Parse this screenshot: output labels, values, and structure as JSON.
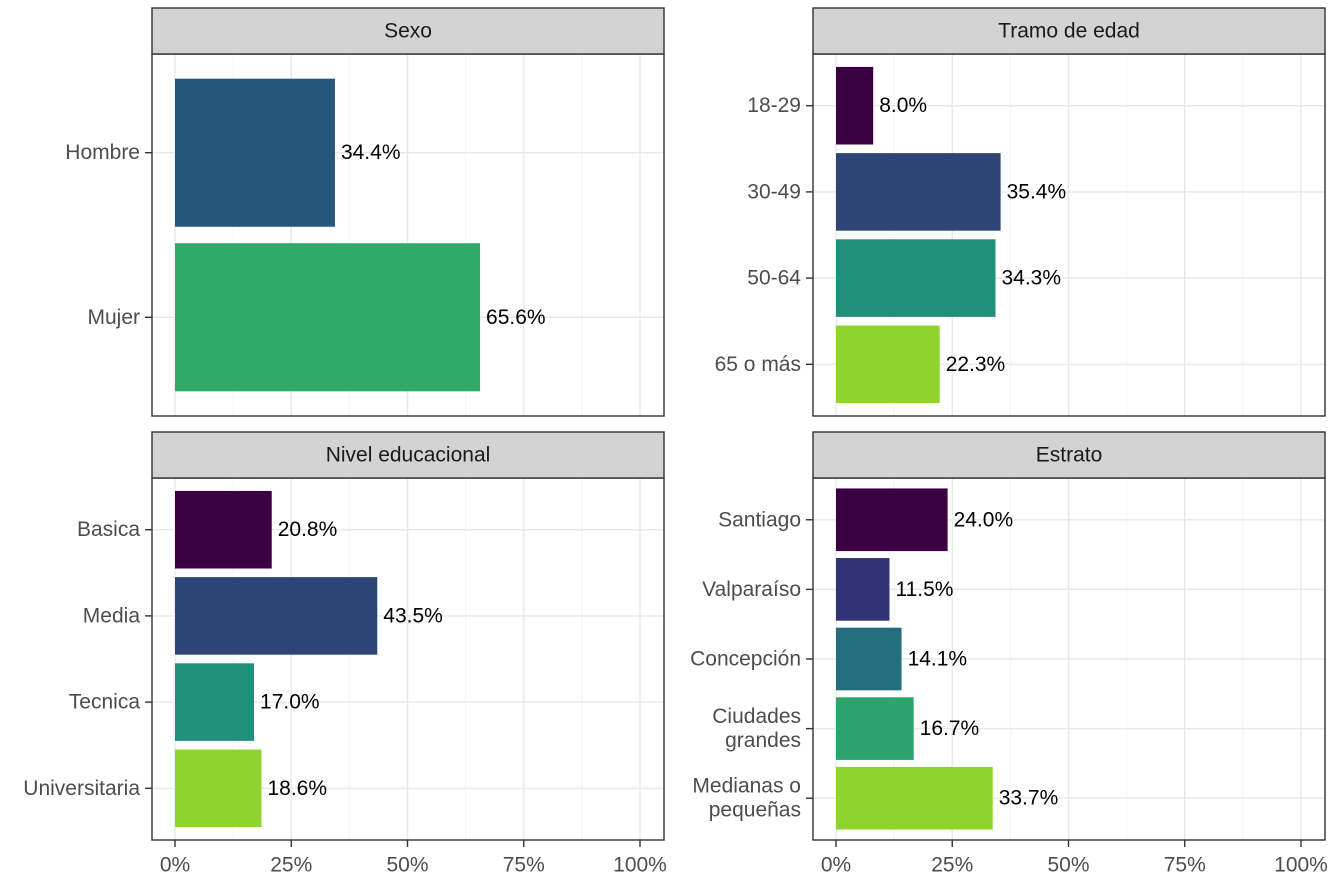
{
  "chart_data": [
    {
      "type": "bar",
      "orientation": "horizontal",
      "title": "Sexo",
      "categories": [
        "Hombre",
        "Mujer"
      ],
      "values": [
        34.4,
        65.6
      ],
      "labels": [
        "34.4%",
        "65.6%"
      ],
      "colors": [
        "#26567a",
        "#2eac67"
      ],
      "xlim": [
        0,
        100
      ],
      "x_ticks": [
        "0%",
        "25%",
        "50%",
        "75%",
        "100%"
      ],
      "grid": true
    },
    {
      "type": "bar",
      "orientation": "horizontal",
      "title": "Tramo de edad",
      "categories": [
        "18-29",
        "30-49",
        "50-64",
        "65 o más"
      ],
      "values": [
        8.0,
        35.4,
        34.3,
        22.3
      ],
      "labels": [
        "8.0%",
        "35.4%",
        "34.3%",
        "22.3%"
      ],
      "colors": [
        "#3b0041",
        "#2c4478",
        "#20907b",
        "#8ed42c"
      ],
      "xlim": [
        0,
        100
      ],
      "x_ticks": [
        "0%",
        "25%",
        "50%",
        "75%",
        "100%"
      ],
      "grid": true
    },
    {
      "type": "bar",
      "orientation": "horizontal",
      "title": "Nivel educacional",
      "categories": [
        "Basica",
        "Media",
        "Tecnica",
        "Universitaria"
      ],
      "values": [
        20.8,
        43.5,
        17.0,
        18.6
      ],
      "labels": [
        "20.8%",
        "43.5%",
        "17.0%",
        "18.6%"
      ],
      "colors": [
        "#3b0041",
        "#2c4478",
        "#20907b",
        "#8ed42c"
      ],
      "xlim": [
        0,
        100
      ],
      "x_ticks": [
        "0%",
        "25%",
        "50%",
        "75%",
        "100%"
      ],
      "grid": true
    },
    {
      "type": "bar",
      "orientation": "horizontal",
      "title": "Estrato",
      "categories": [
        "Santiago",
        "Valparaíso",
        "Concepción",
        "Ciudades\ngrandes",
        "Medianas o\npequeñas"
      ],
      "values": [
        24.0,
        11.5,
        14.1,
        16.7,
        33.7
      ],
      "labels": [
        "24.0%",
        "11.5%",
        "14.1%",
        "16.7%",
        "33.7%"
      ],
      "colors": [
        "#3b0041",
        "#303375",
        "#226e7e",
        "#2aa46c",
        "#8ed42c"
      ],
      "xlim": [
        0,
        100
      ],
      "x_ticks": [
        "0%",
        "25%",
        "50%",
        "75%",
        "100%"
      ],
      "grid": true
    }
  ],
  "theme": {
    "strip_fill": "#d3d3d3",
    "panel_border": "#333333",
    "grid_major": "#e8e8e8",
    "grid_minor": "#f4f4f4",
    "axis_text": "#4d4d4d"
  }
}
